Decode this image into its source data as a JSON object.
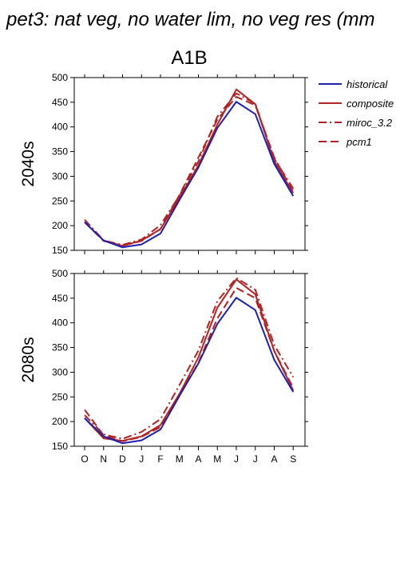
{
  "figure": {
    "title": "pet3: nat veg, no water lim, no veg res (mm",
    "scenario": "A1B"
  },
  "legend": [
    {
      "name": "historical",
      "color": "#1f1fb4",
      "dash": "solid"
    },
    {
      "name": "composite",
      "color": "#b22222",
      "dash": "solid"
    },
    {
      "name": "miroc_3.2",
      "color": "#b22222",
      "dash": "dashdot"
    },
    {
      "name": "pcm1",
      "color": "#b22222",
      "dash": "dashed"
    }
  ],
  "chart_data": [
    {
      "type": "line",
      "panel_label": "2040s",
      "categories": [
        "O",
        "N",
        "D",
        "J",
        "F",
        "M",
        "A",
        "M",
        "J",
        "J",
        "A",
        "S"
      ],
      "ylim": [
        150,
        500
      ],
      "yticks": [
        150,
        200,
        250,
        300,
        350,
        400,
        450,
        500
      ],
      "series": [
        {
          "name": "historical",
          "values": [
            207,
            170,
            156,
            162,
            184,
            252,
            318,
            398,
            451,
            426,
            325,
            260
          ]
        },
        {
          "name": "composite",
          "values": [
            207,
            170,
            159,
            170,
            193,
            256,
            322,
            405,
            476,
            446,
            330,
            266
          ]
        },
        {
          "name": "miroc_3.2",
          "values": [
            212,
            170,
            161,
            172,
            201,
            261,
            330,
            421,
            468,
            447,
            335,
            275
          ]
        },
        {
          "name": "pcm1",
          "values": [
            207,
            169,
            159,
            169,
            193,
            262,
            338,
            415,
            461,
            444,
            338,
            268
          ]
        }
      ]
    },
    {
      "type": "line",
      "panel_label": "2080s",
      "categories": [
        "O",
        "N",
        "D",
        "J",
        "F",
        "M",
        "A",
        "M",
        "J",
        "J",
        "A",
        "S"
      ],
      "ylim": [
        150,
        500
      ],
      "yticks": [
        150,
        200,
        250,
        300,
        350,
        400,
        450,
        500
      ],
      "series": [
        {
          "name": "historical",
          "values": [
            207,
            170,
            156,
            162,
            184,
            252,
            318,
            398,
            451,
            426,
            325,
            260
          ]
        },
        {
          "name": "composite",
          "values": [
            207,
            166,
            161,
            170,
            193,
            256,
            330,
            431,
            488,
            458,
            343,
            263
          ]
        },
        {
          "name": "miroc_3.2",
          "values": [
            213,
            174,
            165,
            179,
            205,
            274,
            344,
            444,
            491,
            467,
            355,
            290
          ]
        },
        {
          "name": "pcm1",
          "values": [
            224,
            172,
            160,
            169,
            189,
            254,
            319,
            409,
            471,
            450,
            343,
            268
          ]
        }
      ]
    }
  ]
}
